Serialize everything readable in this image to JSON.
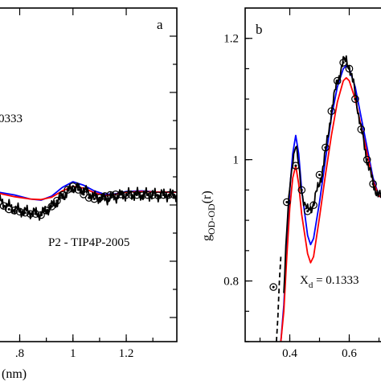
{
  "chart_data": [
    {
      "type": "line",
      "panel_label": "a",
      "annotations": [
        "0333",
        "P2 - TIP4P-2005"
      ],
      "xlabel": "(nm)",
      "xlim": [
        0.72,
        1.39
      ],
      "ylim": [
        0.74,
        1.32
      ],
      "x_ticks": [
        0.8,
        1.0,
        1.2
      ],
      "x_tick_labels": [
        ".8",
        "1",
        "1.2"
      ],
      "series": [
        {
          "color": "#0000ff",
          "style": "solid",
          "x": [
            0.72,
            0.78,
            0.84,
            0.88,
            0.92,
            0.96,
            1.0,
            1.04,
            1.08,
            1.12,
            1.16,
            1.2,
            1.26,
            1.32,
            1.39
          ],
          "y": [
            1.0,
            0.995,
            0.988,
            0.986,
            0.993,
            1.008,
            1.018,
            1.012,
            1.002,
            0.996,
            0.997,
            1.001,
            1.002,
            1.0,
            1.0
          ]
        },
        {
          "color": "#ff0000",
          "style": "solid",
          "x": [
            0.72,
            0.78,
            0.84,
            0.88,
            0.92,
            0.96,
            1.0,
            1.04,
            1.08,
            1.12,
            1.16,
            1.2,
            1.26,
            1.32,
            1.39
          ],
          "y": [
            0.998,
            0.992,
            0.988,
            0.987,
            0.991,
            1.002,
            1.01,
            1.007,
            0.999,
            0.994,
            0.996,
            1.0,
            1.001,
            1.0,
            1.0
          ]
        },
        {
          "color": "#000000",
          "style": "noisy",
          "x": [
            0.72,
            0.76,
            0.8,
            0.84,
            0.88,
            0.92,
            0.96,
            1.0,
            1.04,
            1.08,
            1.12,
            1.16,
            1.2,
            1.26,
            1.32,
            1.39
          ],
          "y": [
            0.985,
            0.975,
            0.968,
            0.965,
            0.962,
            0.975,
            0.992,
            1.008,
            1.004,
            0.992,
            0.988,
            0.992,
            0.996,
            0.996,
            0.995,
            0.995
          ]
        }
      ],
      "markers_x": [
        0.72,
        0.74,
        0.76,
        0.78,
        0.8,
        0.82,
        0.84,
        0.86,
        0.88,
        0.9,
        0.92,
        0.94,
        0.96,
        0.98,
        1.0,
        1.02,
        1.04,
        1.06,
        1.08,
        1.1,
        1.12,
        1.14,
        1.16,
        1.18,
        1.2,
        1.22,
        1.24,
        1.26,
        1.28,
        1.3,
        1.32,
        1.34,
        1.36,
        1.38
      ],
      "markers_y": [
        0.982,
        0.976,
        0.97,
        0.968,
        0.966,
        0.964,
        0.962,
        0.962,
        0.96,
        0.968,
        0.975,
        0.985,
        0.995,
        1.004,
        1.01,
        1.004,
        0.996,
        0.99,
        0.988,
        0.99,
        0.993,
        0.995,
        0.996,
        0.996,
        0.995,
        0.995,
        0.995,
        0.994,
        0.995,
        0.995,
        0.994,
        0.995,
        0.995,
        0.995
      ]
    },
    {
      "type": "line",
      "panel_label": "b",
      "annotation": "X_d = 0.1333",
      "annotation_main": "X",
      "annotation_sub": "d",
      "annotation_rest": " = 0.1333",
      "ylabel_main": "g",
      "ylabel_sub": "OD-OD",
      "ylabel_rest": "(r)",
      "xlim": [
        0.25,
        0.75
      ],
      "ylim": [
        0.7,
        1.25
      ],
      "x_ticks": [
        0.4,
        0.6
      ],
      "x_tick_labels": [
        "0.4",
        "0.6"
      ],
      "y_ticks": [
        0.8,
        1.0,
        1.2
      ],
      "y_tick_labels": [
        "0.8",
        "1",
        "1.2"
      ],
      "series": [
        {
          "color": "#0000ff",
          "style": "solid",
          "x": [
            0.37,
            0.38,
            0.39,
            0.4,
            0.41,
            0.42,
            0.43,
            0.44,
            0.46,
            0.47,
            0.48,
            0.5,
            0.52,
            0.54,
            0.56,
            0.58,
            0.59,
            0.6,
            0.62,
            0.64,
            0.66,
            0.68,
            0.7,
            0.72,
            0.74,
            0.75
          ],
          "y": [
            0.7,
            0.76,
            0.86,
            0.95,
            1.01,
            1.04,
            1.01,
            0.95,
            0.875,
            0.86,
            0.87,
            0.93,
            1.0,
            1.07,
            1.12,
            1.15,
            1.155,
            1.15,
            1.12,
            1.07,
            1.02,
            0.97,
            0.94,
            0.935,
            0.94,
            0.945
          ]
        },
        {
          "color": "#ff0000",
          "style": "solid",
          "x": [
            0.37,
            0.38,
            0.39,
            0.4,
            0.41,
            0.42,
            0.43,
            0.44,
            0.46,
            0.47,
            0.48,
            0.5,
            0.52,
            0.54,
            0.56,
            0.58,
            0.59,
            0.6,
            0.62,
            0.64,
            0.66,
            0.68,
            0.7,
            0.72,
            0.74,
            0.75
          ],
          "y": [
            0.7,
            0.75,
            0.84,
            0.92,
            0.97,
            0.99,
            0.96,
            0.91,
            0.845,
            0.83,
            0.84,
            0.905,
            0.975,
            1.04,
            1.095,
            1.13,
            1.135,
            1.13,
            1.1,
            1.055,
            1.01,
            0.965,
            0.94,
            0.935,
            0.94,
            0.945
          ]
        },
        {
          "color": "#000000",
          "style": "noisy",
          "x": [
            0.38,
            0.39,
            0.4,
            0.41,
            0.42,
            0.43,
            0.44,
            0.45,
            0.46,
            0.47,
            0.48,
            0.5,
            0.52,
            0.54,
            0.56,
            0.58,
            0.59,
            0.6,
            0.62,
            0.64,
            0.66,
            0.68,
            0.7,
            0.72,
            0.74,
            0.75
          ],
          "y": [
            0.78,
            0.88,
            0.96,
            1.0,
            1.02,
            0.99,
            0.95,
            0.925,
            0.915,
            0.92,
            0.93,
            0.96,
            1.01,
            1.08,
            1.13,
            1.16,
            1.165,
            1.155,
            1.11,
            1.05,
            1.0,
            0.96,
            0.94,
            0.935,
            0.94,
            0.945
          ]
        }
      ],
      "dashed_x": [
        0.355,
        0.36,
        0.365,
        0.37
      ],
      "dashed_y": [
        0.7,
        0.74,
        0.8,
        0.84
      ],
      "markers_x": [
        0.345,
        0.39,
        0.42,
        0.44,
        0.46,
        0.48,
        0.5,
        0.52,
        0.54,
        0.56,
        0.58,
        0.6,
        0.62,
        0.64,
        0.66,
        0.68
      ],
      "markers_y": [
        0.79,
        0.93,
        0.99,
        0.95,
        0.915,
        0.925,
        0.975,
        1.02,
        1.08,
        1.13,
        1.16,
        1.15,
        1.1,
        1.05,
        1.0,
        0.96
      ]
    }
  ]
}
